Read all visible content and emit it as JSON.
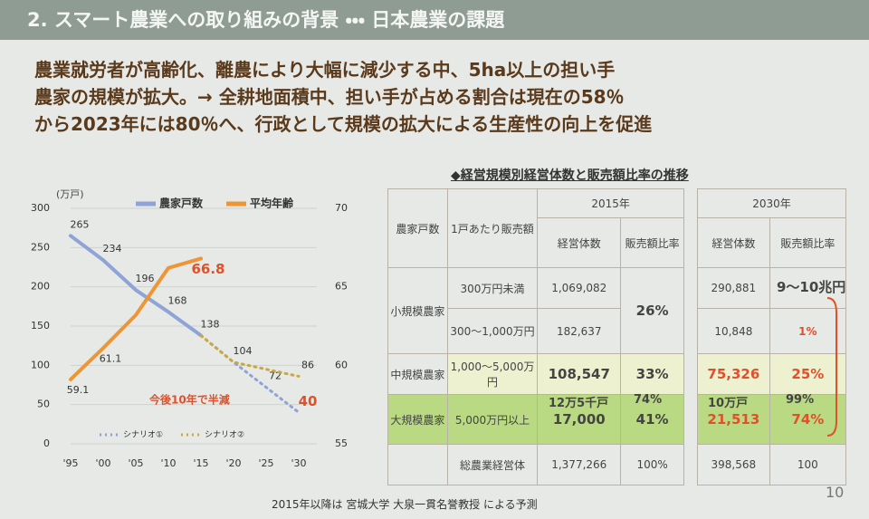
{
  "header": {
    "title": "2. スマート農業への取り組みの背景 ・・・ 日本農業の課題"
  },
  "intro": [
    "農業就労者が高齢化、離農により大幅に減少する中、5ha以上の担い手",
    "農家の規模が拡大。→ 全耕地面積中、担い手が占める割合は現在の58％",
    "から2023年には80％へ、行政として規模の拡大による生産性の向上を促進"
  ],
  "chart_data": {
    "type": "line",
    "y_label": "(万戸)",
    "categories": [
      "'95",
      "'00",
      "'05",
      "'10",
      "'15",
      "'20",
      "'25",
      "'30"
    ],
    "series": [
      {
        "name": "農家戸数",
        "color": "#8fa3d6",
        "style": "solid",
        "values": [
          265,
          234,
          196,
          168,
          138,
          null,
          null,
          null
        ]
      },
      {
        "name": "平均年齢",
        "color": "#ee9535",
        "style": "solid",
        "axis": "y2",
        "values": [
          59.1,
          61.1,
          63.2,
          66.2,
          66.8,
          null,
          null,
          null
        ],
        "value_labels": [
          "59.1",
          "61.1",
          null,
          null,
          "66.8",
          null,
          null,
          null
        ]
      },
      {
        "name": "シナリオ①",
        "color": "#8fa3d6",
        "style": "dotted",
        "values": [
          null,
          null,
          null,
          null,
          138,
          104,
          72,
          40
        ],
        "value_labels": [
          null,
          null,
          null,
          null,
          null,
          "104",
          "72",
          "40"
        ]
      },
      {
        "name": "シナリオ②",
        "color": "#c9a93f",
        "style": "dotted",
        "values": [
          null,
          null,
          null,
          null,
          138,
          104,
          95,
          86
        ],
        "value_labels": [
          null,
          null,
          null,
          null,
          null,
          null,
          null,
          "86"
        ]
      }
    ],
    "ylim": [
      0,
      300
    ],
    "yticks": [
      0,
      50,
      100,
      150,
      200,
      250,
      300
    ],
    "y2lim": [
      55,
      70
    ],
    "y2ticks": [
      55,
      60,
      65,
      70
    ],
    "grid": true,
    "annotation": "今後10年で半減"
  },
  "table": {
    "title": "◆経営規模別経営体数と販売額比率の推移",
    "head": {
      "farms": "農家戸数",
      "sales": "1戸あたり販売額",
      "year_2015": "2015年",
      "year_2030": "2030年",
      "count": "経営体数",
      "ratio": "販売額比率"
    },
    "rows": [
      {
        "label": "小規模農家",
        "band": "300万円未満",
        "count_2015": "1,069,082",
        "ratio_2015": "26%",
        "count_2030": "290,881"
      },
      {
        "band": "300〜1,000万円",
        "count_2015": "182,637",
        "count_2030": "10,848",
        "ratio_2030": "1%"
      },
      {
        "label": "中規模農家",
        "band": "1,000〜5,000万円",
        "count_2015": "108,547",
        "ratio_2015": "33%",
        "count_2030": "75,326",
        "ratio_2030": "25%"
      },
      {
        "label": "大規模農家",
        "band": "5,000万円以上",
        "count_2015": "17,000",
        "ratio_2015": "41%",
        "count_2030": "21,513",
        "ratio_2030": "74%"
      },
      {
        "label": "総農業経営体",
        "count_2015": "1,377,266",
        "ratio_2015": "100%",
        "count_2030": "398,568",
        "ratio_2030": "100"
      }
    ],
    "notes": {
      "households_2015": "12万5千戸",
      "ratio_2015": "74%",
      "households_2030": "10万戸",
      "ratio_2030": "99%",
      "sales_total": "9〜10兆円"
    }
  },
  "footer": "2015年以降は 宮城大学 大泉一貫名誉教授 による予測",
  "page_number": "10"
}
